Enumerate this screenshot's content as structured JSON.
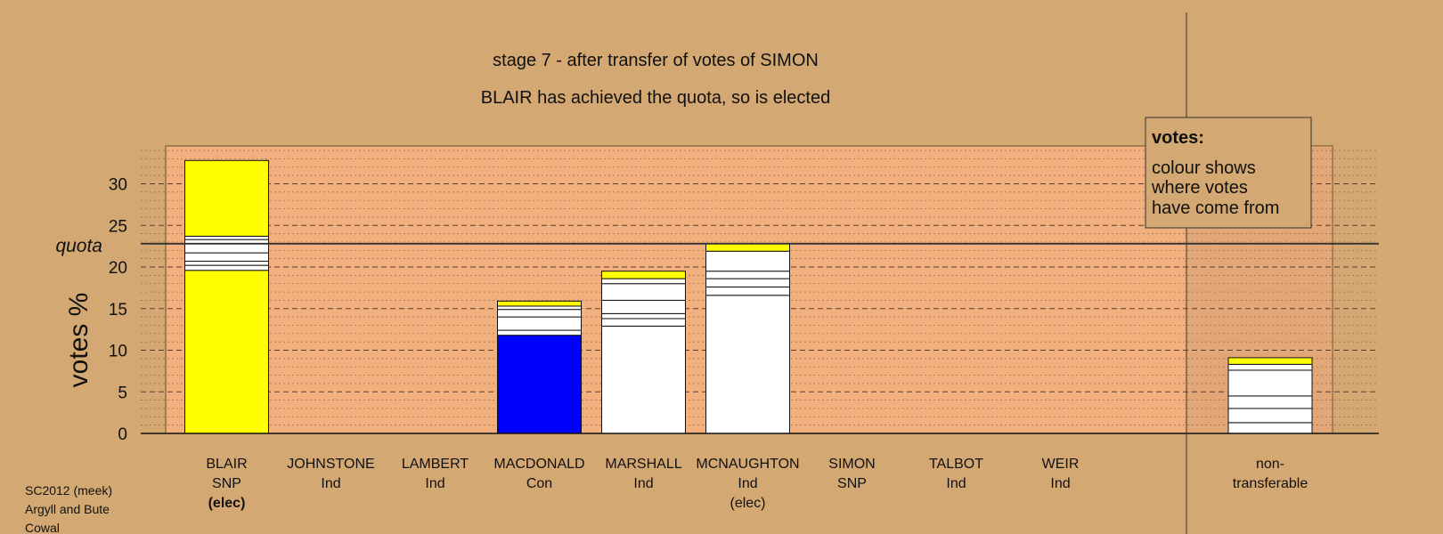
{
  "chart_data": {
    "type": "bar",
    "stacked": true,
    "title": "stage 7 - after transfer of votes of SIMON",
    "subtitle": "BLAIR has achieved the quota, so is elected",
    "ylabel": "votes %",
    "ylim": [
      0,
      34
    ],
    "yticks": [
      0,
      5,
      10,
      15,
      20,
      25,
      30
    ],
    "quota": 22.8,
    "quota_label": "quota",
    "grid": "horizontal dashed major lines, dotted minor lines",
    "legend": {
      "title": "votes:",
      "lines": [
        "colour shows",
        "where votes",
        "have come from"
      ]
    },
    "candidates": [
      {
        "name": "BLAIR",
        "party": "SNP",
        "status": "(elec)",
        "total": 32.8,
        "segments": [
          {
            "value": 19.6,
            "color": "#ffff00"
          },
          {
            "value": 0.6,
            "color": "#ffffff"
          },
          {
            "value": 0.5,
            "color": "#ffffff"
          },
          {
            "value": 1.0,
            "color": "#ffffff"
          },
          {
            "value": 1.6,
            "color": "#ffffff"
          },
          {
            "value": 0.4,
            "color": "#ffffff"
          },
          {
            "value": 9.1,
            "color": "#ffff00"
          }
        ]
      },
      {
        "name": "JOHNSTONE",
        "party": "Ind",
        "status": "",
        "total": 0,
        "segments": []
      },
      {
        "name": "LAMBERT",
        "party": "Ind",
        "status": "",
        "total": 0,
        "segments": []
      },
      {
        "name": "MACDONALD",
        "party": "Con",
        "status": "",
        "total": 15.9,
        "segments": [
          {
            "value": 11.8,
            "color": "#0000ff"
          },
          {
            "value": 0.6,
            "color": "#ffffff"
          },
          {
            "value": 1.6,
            "color": "#ffffff"
          },
          {
            "value": 0.9,
            "color": "#ffffff"
          },
          {
            "value": 0.4,
            "color": "#ffffff"
          },
          {
            "value": 0.6,
            "color": "#ffff00"
          }
        ]
      },
      {
        "name": "MARSHALL",
        "party": "Ind",
        "status": "",
        "total": 19.5,
        "segments": [
          {
            "value": 12.9,
            "color": "#ffffff"
          },
          {
            "value": 0.9,
            "color": "#ffffff"
          },
          {
            "value": 0.6,
            "color": "#ffffff"
          },
          {
            "value": 1.6,
            "color": "#ffffff"
          },
          {
            "value": 2.0,
            "color": "#ffffff"
          },
          {
            "value": 0.6,
            "color": "#ffffff"
          },
          {
            "value": 0.9,
            "color": "#ffff00"
          }
        ]
      },
      {
        "name": "MCNAUGHTON",
        "party": "Ind",
        "status": "(elec)",
        "total": 22.8,
        "segments": [
          {
            "value": 16.6,
            "color": "#ffffff"
          },
          {
            "value": 1.0,
            "color": "#ffffff"
          },
          {
            "value": 1.0,
            "color": "#ffffff"
          },
          {
            "value": 0.9,
            "color": "#ffffff"
          },
          {
            "value": 2.4,
            "color": "#ffffff"
          },
          {
            "value": 0.9,
            "color": "#ffff00"
          }
        ]
      },
      {
        "name": "SIMON",
        "party": "SNP",
        "status": "",
        "total": 0,
        "segments": []
      },
      {
        "name": "TALBOT",
        "party": "Ind",
        "status": "",
        "total": 0,
        "segments": []
      },
      {
        "name": "WEIR",
        "party": "Ind",
        "status": "",
        "total": 0,
        "segments": []
      }
    ],
    "nontransferable": {
      "label_lines": [
        "non-",
        "transferable"
      ],
      "total": 9.1,
      "segments": [
        {
          "value": 1.3,
          "color": "#ffffff"
        },
        {
          "value": 1.7,
          "color": "#ffffff"
        },
        {
          "value": 1.5,
          "color": "#ffffff"
        },
        {
          "value": 3.1,
          "color": "#ffffff"
        },
        {
          "value": 0.7,
          "color": "#ffffff"
        },
        {
          "value": 0.8,
          "color": "#ffff00"
        }
      ]
    }
  },
  "footer": {
    "lines": [
      "SC2012 (meek)",
      "Argyll and Bute",
      "Cowal"
    ]
  },
  "colors": {
    "background": "#d4a872",
    "plot_area": "#f2b07f",
    "snp": "#ffff00",
    "con": "#0000ff",
    "ind": "#ffffff"
  }
}
